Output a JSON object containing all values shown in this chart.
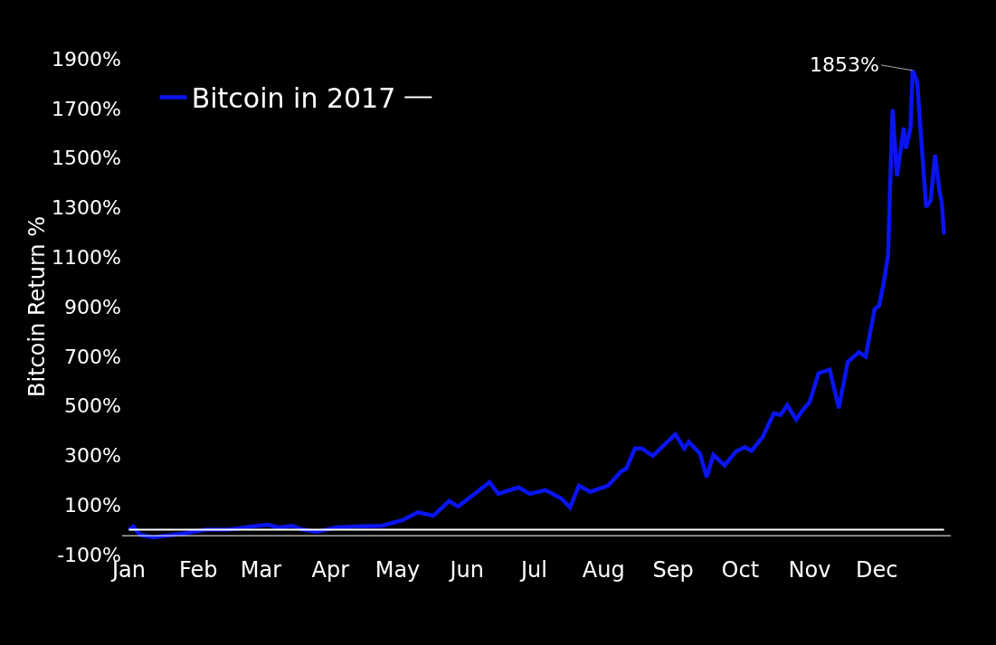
{
  "chart_data": {
    "type": "line",
    "ylabel": "Bitcoin Return %",
    "legend": "top left",
    "grid": false,
    "marker": "none",
    "line_style": "solid",
    "xlim": [
      "2016-12-29",
      "2018-01-03"
    ],
    "xticks": [
      {
        "value": "2017-01-01",
        "label": "Jan"
      },
      {
        "value": "2017-02-01",
        "label": "Feb"
      },
      {
        "value": "2017-03-01",
        "label": "Mar"
      },
      {
        "value": "2017-04-01",
        "label": "Apr"
      },
      {
        "value": "2017-05-01",
        "label": "May"
      },
      {
        "value": "2017-06-01",
        "label": "Jun"
      },
      {
        "value": "2017-07-01",
        "label": "Jul"
      },
      {
        "value": "2017-08-01",
        "label": "Aug"
      },
      {
        "value": "2017-09-01",
        "label": "Sep"
      },
      {
        "value": "2017-10-01",
        "label": "Oct"
      },
      {
        "value": "2017-11-01",
        "label": "Nov"
      },
      {
        "value": "2017-12-01",
        "label": "Dec"
      }
    ],
    "ylim": [
      -100,
      1900
    ],
    "yticks": [
      {
        "value": -100,
        "label": "-100%"
      },
      {
        "value": 100,
        "label": "100%"
      },
      {
        "value": 300,
        "label": "300%"
      },
      {
        "value": 500,
        "label": "500%"
      },
      {
        "value": 700,
        "label": "700%"
      },
      {
        "value": 900,
        "label": "900%"
      },
      {
        "value": 1100,
        "label": "1100%"
      },
      {
        "value": 1300,
        "label": "1300%"
      },
      {
        "value": 1500,
        "label": "1500%"
      },
      {
        "value": 1700,
        "label": "1700%"
      },
      {
        "value": 1900,
        "label": "1900%"
      }
    ],
    "series": [
      {
        "name": "Bitcoin in 2017",
        "color": "#0a14f0",
        "x": [
          "2017-01-01",
          "2017-01-03",
          "2017-01-06",
          "2017-01-12",
          "2017-01-27",
          "2017-02-04",
          "2017-02-14",
          "2017-02-25",
          "2017-03-04",
          "2017-03-09",
          "2017-03-15",
          "2017-03-19",
          "2017-03-26",
          "2017-04-03",
          "2017-04-12",
          "2017-04-24",
          "2017-05-03",
          "2017-05-10",
          "2017-05-17",
          "2017-05-24",
          "2017-05-28",
          "2017-06-05",
          "2017-06-11",
          "2017-06-15",
          "2017-06-24",
          "2017-06-29",
          "2017-07-06",
          "2017-07-13",
          "2017-07-17",
          "2017-07-21",
          "2017-07-26",
          "2017-08-03",
          "2017-08-09",
          "2017-08-11",
          "2017-08-15",
          "2017-08-18",
          "2017-08-23",
          "2017-08-27",
          "2017-09-02",
          "2017-09-06",
          "2017-09-08",
          "2017-09-13",
          "2017-09-16",
          "2017-09-19",
          "2017-09-24",
          "2017-09-29",
          "2017-10-03",
          "2017-10-06",
          "2017-10-11",
          "2017-10-16",
          "2017-10-19",
          "2017-10-22",
          "2017-10-26",
          "2017-10-29",
          "2017-11-01",
          "2017-11-05",
          "2017-11-10",
          "2017-11-11",
          "2017-11-14",
          "2017-11-18",
          "2017-11-23",
          "2017-11-26",
          "2017-11-30",
          "2017-12-02",
          "2017-12-04",
          "2017-12-05",
          "2017-12-06",
          "2017-12-08",
          "2017-12-10",
          "2017-12-13",
          "2017-12-14",
          "2017-12-16",
          "2017-12-17",
          "2017-12-19",
          "2017-12-23",
          "2017-12-25",
          "2017-12-27",
          "2017-12-29",
          "2017-12-30",
          "2017-12-31"
        ],
        "values": [
          0,
          13,
          -20,
          -31,
          -13,
          0,
          0,
          13,
          20,
          9,
          16,
          2,
          -9,
          9,
          13,
          16,
          38,
          70,
          57,
          116,
          94,
          149,
          192,
          145,
          171,
          145,
          160,
          127,
          90,
          178,
          153,
          178,
          237,
          245,
          328,
          328,
          298,
          333,
          385,
          328,
          354,
          308,
          212,
          302,
          260,
          315,
          333,
          318,
          374,
          470,
          463,
          503,
          444,
          484,
          515,
          632,
          646,
          606,
          490,
          677,
          716,
          698,
          890,
          904,
          994,
          1051,
          1107,
          1696,
          1427,
          1622,
          1538,
          1622,
          1853,
          1807,
          1302,
          1328,
          1512,
          1365,
          1320,
          1192
        ]
      },
      {
        "color": "#ffffff",
        "x": [
          "2017-01-01",
          "2017-12-31"
        ],
        "values": [
          0,
          0
        ]
      }
    ],
    "ref_lines": [
      {
        "axis": "y",
        "value": -24,
        "color": "#ffffff"
      }
    ],
    "annotations": [
      {
        "text": "1853%",
        "x": "2017-12-17",
        "y": 1853
      }
    ]
  }
}
